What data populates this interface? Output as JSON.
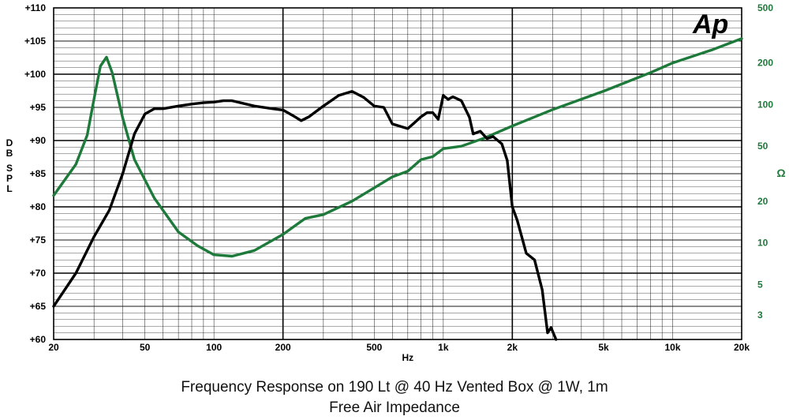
{
  "chart_data": {
    "type": "line",
    "title": "Frequency Response on 190 Lt @ 40 Hz Vented Box @ 1W, 1m",
    "subtitle": "Free Air Impedance",
    "logo": "Ap",
    "xlabel": "Hz",
    "x_scale": "log",
    "xlim": [
      20,
      20000
    ],
    "x_ticks": [
      {
        "v": 20,
        "label": "20"
      },
      {
        "v": 50,
        "label": "50"
      },
      {
        "v": 100,
        "label": "100"
      },
      {
        "v": 200,
        "label": "200"
      },
      {
        "v": 500,
        "label": "500"
      },
      {
        "v": 1000,
        "label": "1k"
      },
      {
        "v": 2000,
        "label": "2k"
      },
      {
        "v": 5000,
        "label": "5k"
      },
      {
        "v": 10000,
        "label": "10k"
      },
      {
        "v": 20000,
        "label": "20k"
      }
    ],
    "ylabel_left": [
      "dB",
      "SPL"
    ],
    "ylim_left": [
      60,
      110
    ],
    "y_ticks_left": [
      {
        "v": 110,
        "label": "+110"
      },
      {
        "v": 105,
        "label": "+105"
      },
      {
        "v": 100,
        "label": "+100"
      },
      {
        "v": 95,
        "label": "+95"
      },
      {
        "v": 90,
        "label": "+90"
      },
      {
        "v": 85,
        "label": "+85"
      },
      {
        "v": 80,
        "label": "+80"
      },
      {
        "v": 75,
        "label": "+75"
      },
      {
        "v": 70,
        "label": "+70"
      },
      {
        "v": 65,
        "label": "+65"
      },
      {
        "v": 60,
        "label": "+60"
      }
    ],
    "ylabel_right": "Ω",
    "y_scale_right": "log",
    "ylim_right": [
      2,
      500
    ],
    "y_ticks_right": [
      {
        "v": 500,
        "label": "500"
      },
      {
        "v": 200,
        "label": "200"
      },
      {
        "v": 100,
        "label": "100"
      },
      {
        "v": 50,
        "label": "50"
      },
      {
        "v": 20,
        "label": "20"
      },
      {
        "v": 10,
        "label": "10"
      },
      {
        "v": 5,
        "label": "5"
      },
      {
        "v": 3,
        "label": "3"
      }
    ],
    "grid": true,
    "colors": {
      "spl": "#000000",
      "impedance": "#1e7a3a",
      "grid": "#000000",
      "right_axis": "#1e7a3a"
    },
    "series": [
      {
        "key": "spl",
        "axis": "left",
        "points": [
          [
            20,
            65
          ],
          [
            25,
            70
          ],
          [
            30,
            75.5
          ],
          [
            35,
            79.5
          ],
          [
            40,
            85
          ],
          [
            45,
            91
          ],
          [
            50,
            94
          ],
          [
            55,
            94.8
          ],
          [
            60,
            94.8
          ],
          [
            70,
            95.2
          ],
          [
            80,
            95.5
          ],
          [
            90,
            95.7
          ],
          [
            100,
            95.8
          ],
          [
            110,
            96
          ],
          [
            120,
            96
          ],
          [
            150,
            95.2
          ],
          [
            180,
            94.8
          ],
          [
            200,
            94.6
          ],
          [
            220,
            93.8
          ],
          [
            240,
            93
          ],
          [
            260,
            93.6
          ],
          [
            300,
            95.2
          ],
          [
            350,
            96.8
          ],
          [
            400,
            97.4
          ],
          [
            450,
            96.5
          ],
          [
            500,
            95.2
          ],
          [
            550,
            95
          ],
          [
            600,
            92.5
          ],
          [
            700,
            91.8
          ],
          [
            750,
            92.7
          ],
          [
            800,
            93.6
          ],
          [
            850,
            94.2
          ],
          [
            900,
            94.2
          ],
          [
            950,
            93.2
          ],
          [
            1000,
            96.8
          ],
          [
            1050,
            96.2
          ],
          [
            1100,
            96.6
          ],
          [
            1200,
            96
          ],
          [
            1300,
            93.5
          ],
          [
            1350,
            91
          ],
          [
            1450,
            91.4
          ],
          [
            1550,
            90.3
          ],
          [
            1650,
            90.6
          ],
          [
            1800,
            89.5
          ],
          [
            1900,
            87
          ],
          [
            2000,
            80
          ],
          [
            2100,
            78
          ],
          [
            2300,
            73
          ],
          [
            2500,
            72
          ],
          [
            2700,
            67.5
          ],
          [
            2850,
            61
          ],
          [
            2950,
            61.8
          ],
          [
            3100,
            60
          ]
        ]
      },
      {
        "key": "impedance",
        "axis": "right",
        "points": [
          [
            20,
            22
          ],
          [
            25,
            37
          ],
          [
            28,
            60
          ],
          [
            30,
            110
          ],
          [
            32,
            190
          ],
          [
            34,
            220
          ],
          [
            36,
            170
          ],
          [
            40,
            80
          ],
          [
            45,
            40
          ],
          [
            55,
            21
          ],
          [
            70,
            12
          ],
          [
            85,
            9.5
          ],
          [
            100,
            8.2
          ],
          [
            120,
            8
          ],
          [
            150,
            8.8
          ],
          [
            200,
            11.5
          ],
          [
            250,
            15
          ],
          [
            300,
            16
          ],
          [
            400,
            20
          ],
          [
            500,
            25
          ],
          [
            600,
            30
          ],
          [
            700,
            33
          ],
          [
            800,
            40
          ],
          [
            900,
            42
          ],
          [
            1000,
            48
          ],
          [
            1200,
            50
          ],
          [
            1500,
            57
          ],
          [
            2000,
            70
          ],
          [
            3000,
            92
          ],
          [
            5000,
            125
          ],
          [
            8000,
            170
          ],
          [
            10000,
            200
          ],
          [
            15000,
            250
          ],
          [
            20000,
            300
          ]
        ]
      }
    ]
  }
}
